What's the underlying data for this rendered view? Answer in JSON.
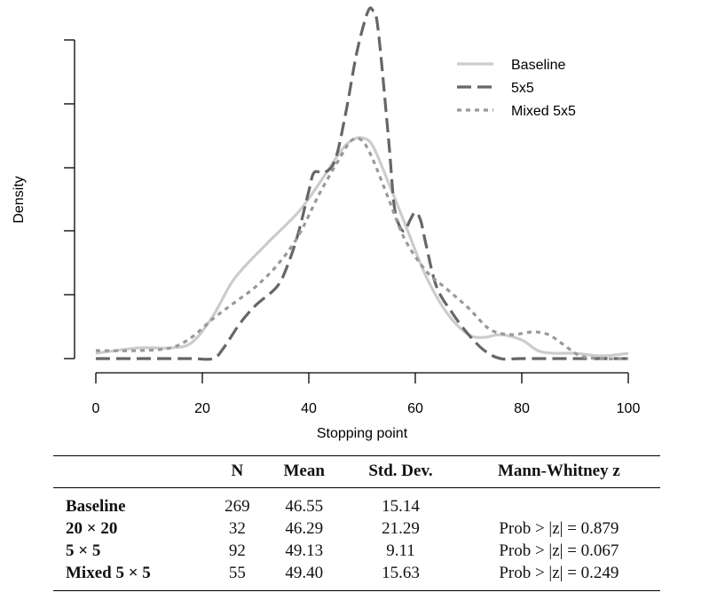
{
  "chart_data": {
    "type": "line",
    "xlabel": "Stopping point",
    "ylabel": "Density",
    "xlim": [
      0,
      100
    ],
    "x_ticks": [
      "0",
      "20",
      "40",
      "60",
      "80",
      "100"
    ],
    "y_ticks_labeled": false,
    "legend_position": "top-right",
    "series": [
      {
        "name": "Baseline",
        "style": "solid",
        "color": "#cccccc",
        "points": [
          [
            0,
            0.002
          ],
          [
            8,
            0.004
          ],
          [
            14,
            0.004
          ],
          [
            18,
            0.006
          ],
          [
            22,
            0.016
          ],
          [
            26,
            0.03
          ],
          [
            32,
            0.043
          ],
          [
            38,
            0.055
          ],
          [
            42,
            0.066
          ],
          [
            46,
            0.078
          ],
          [
            48,
            0.082
          ],
          [
            50,
            0.083
          ],
          [
            52,
            0.08
          ],
          [
            55,
            0.066
          ],
          [
            58,
            0.051
          ],
          [
            62,
            0.031
          ],
          [
            66,
            0.017
          ],
          [
            70,
            0.009
          ],
          [
            73,
            0.008
          ],
          [
            76,
            0.009
          ],
          [
            80,
            0.007
          ],
          [
            83,
            0.003
          ],
          [
            86,
            0.002
          ],
          [
            90,
            0.002
          ],
          [
            95,
            0.001
          ],
          [
            100,
            0.002
          ]
        ]
      },
      {
        "name": "5x5",
        "style": "dashed",
        "color": "#666666",
        "points": [
          [
            0,
            0.0
          ],
          [
            10,
            0.0
          ],
          [
            18,
            0.0
          ],
          [
            22,
            0.0
          ],
          [
            24,
            0.004
          ],
          [
            27,
            0.013
          ],
          [
            30,
            0.02
          ],
          [
            34,
            0.027
          ],
          [
            36,
            0.035
          ],
          [
            38,
            0.047
          ],
          [
            40,
            0.063
          ],
          [
            41,
            0.07
          ],
          [
            43,
            0.07
          ],
          [
            45,
            0.075
          ],
          [
            47,
            0.093
          ],
          [
            49,
            0.115
          ],
          [
            51,
            0.13
          ],
          [
            52,
            0.131
          ],
          [
            53,
            0.124
          ],
          [
            55,
            0.082
          ],
          [
            56,
            0.058
          ],
          [
            57,
            0.05
          ],
          [
            58,
            0.048
          ],
          [
            59,
            0.052
          ],
          [
            60,
            0.055
          ],
          [
            61,
            0.052
          ],
          [
            62,
            0.043
          ],
          [
            64,
            0.027
          ],
          [
            67,
            0.017
          ],
          [
            70,
            0.009
          ],
          [
            73,
            0.003
          ],
          [
            76,
            0.0
          ],
          [
            80,
            0.0
          ],
          [
            90,
            0.0
          ],
          [
            100,
            0.0
          ]
        ]
      },
      {
        "name": "Mixed 5x5",
        "style": "dotted",
        "color": "#999999",
        "points": [
          [
            0,
            0.003
          ],
          [
            8,
            0.003
          ],
          [
            14,
            0.004
          ],
          [
            18,
            0.008
          ],
          [
            22,
            0.015
          ],
          [
            26,
            0.021
          ],
          [
            30,
            0.027
          ],
          [
            34,
            0.035
          ],
          [
            38,
            0.046
          ],
          [
            42,
            0.062
          ],
          [
            46,
            0.076
          ],
          [
            48,
            0.082
          ],
          [
            50,
            0.082
          ],
          [
            52,
            0.075
          ],
          [
            55,
            0.06
          ],
          [
            58,
            0.045
          ],
          [
            62,
            0.033
          ],
          [
            66,
            0.026
          ],
          [
            70,
            0.019
          ],
          [
            74,
            0.011
          ],
          [
            78,
            0.009
          ],
          [
            82,
            0.01
          ],
          [
            85,
            0.009
          ],
          [
            88,
            0.005
          ],
          [
            91,
            0.001
          ],
          [
            95,
            0.0
          ],
          [
            100,
            0.0
          ]
        ]
      }
    ]
  },
  "table": {
    "headers": [
      "",
      "N",
      "Mean",
      "Std. Dev.",
      "Mann-Whitney z"
    ],
    "rows": [
      [
        "Baseline",
        "269",
        "46.55",
        "15.14",
        ""
      ],
      [
        "20 × 20",
        "32",
        "46.29",
        "21.29",
        "Prob > |z| = 0.879"
      ],
      [
        "5 × 5",
        "92",
        "49.13",
        "9.11",
        "Prob > |z| = 0.067"
      ],
      [
        "Mixed 5 × 5",
        "55",
        "49.40",
        "15.63",
        "Prob > |z| = 0.249"
      ]
    ]
  }
}
